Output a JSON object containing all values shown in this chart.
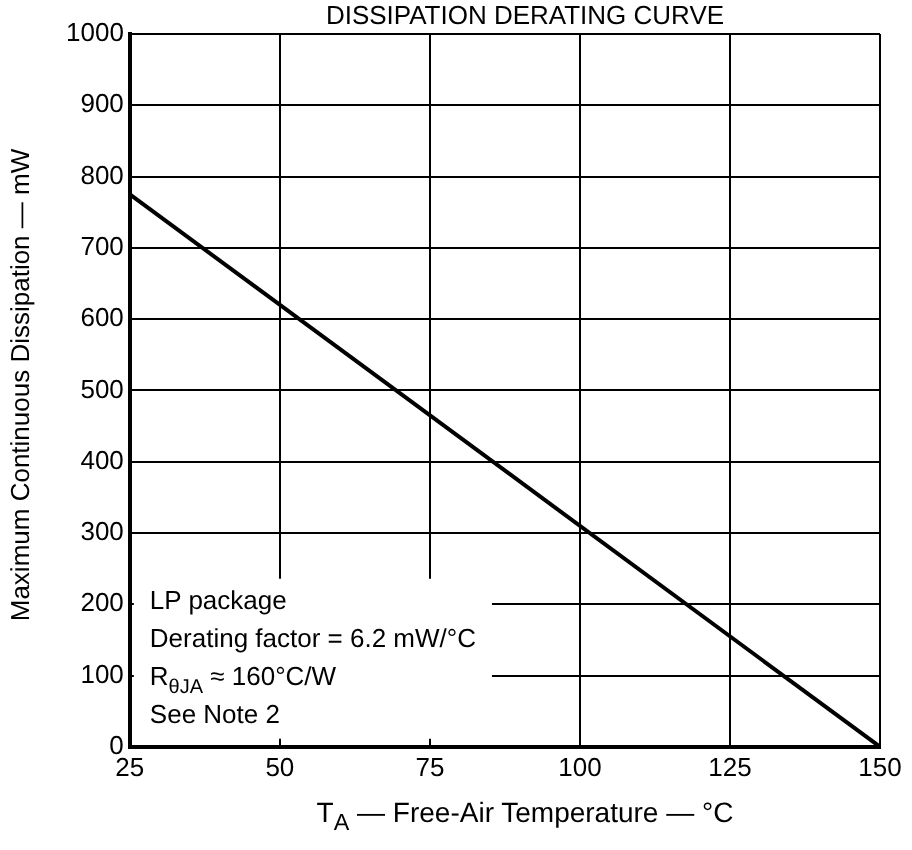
{
  "chart_data": {
    "type": "line",
    "title": "DISSIPATION DERATING CURVE",
    "xlabel": "T$_{A}$ — Free-Air Temperature — °C",
    "ylabel": "Maximum Continuous Dissipation — mW",
    "x": [
      25,
      150
    ],
    "series": [
      {
        "color": "#000000",
        "values": [
          775,
          0
        ]
      }
    ],
    "xlim": [
      25,
      150
    ],
    "xticks": [
      25,
      50,
      75,
      100,
      125,
      150
    ],
    "ylim": [
      0,
      1000
    ],
    "yticks": [
      0,
      100,
      200,
      300,
      400,
      500,
      600,
      700,
      800,
      900,
      1000
    ],
    "grid": true,
    "annotations": [
      "LP package",
      "Derating factor = 6.2 mW/°C",
      "R$_{θJA}$ ≈ 160°C/W",
      "See Note 2"
    ]
  }
}
